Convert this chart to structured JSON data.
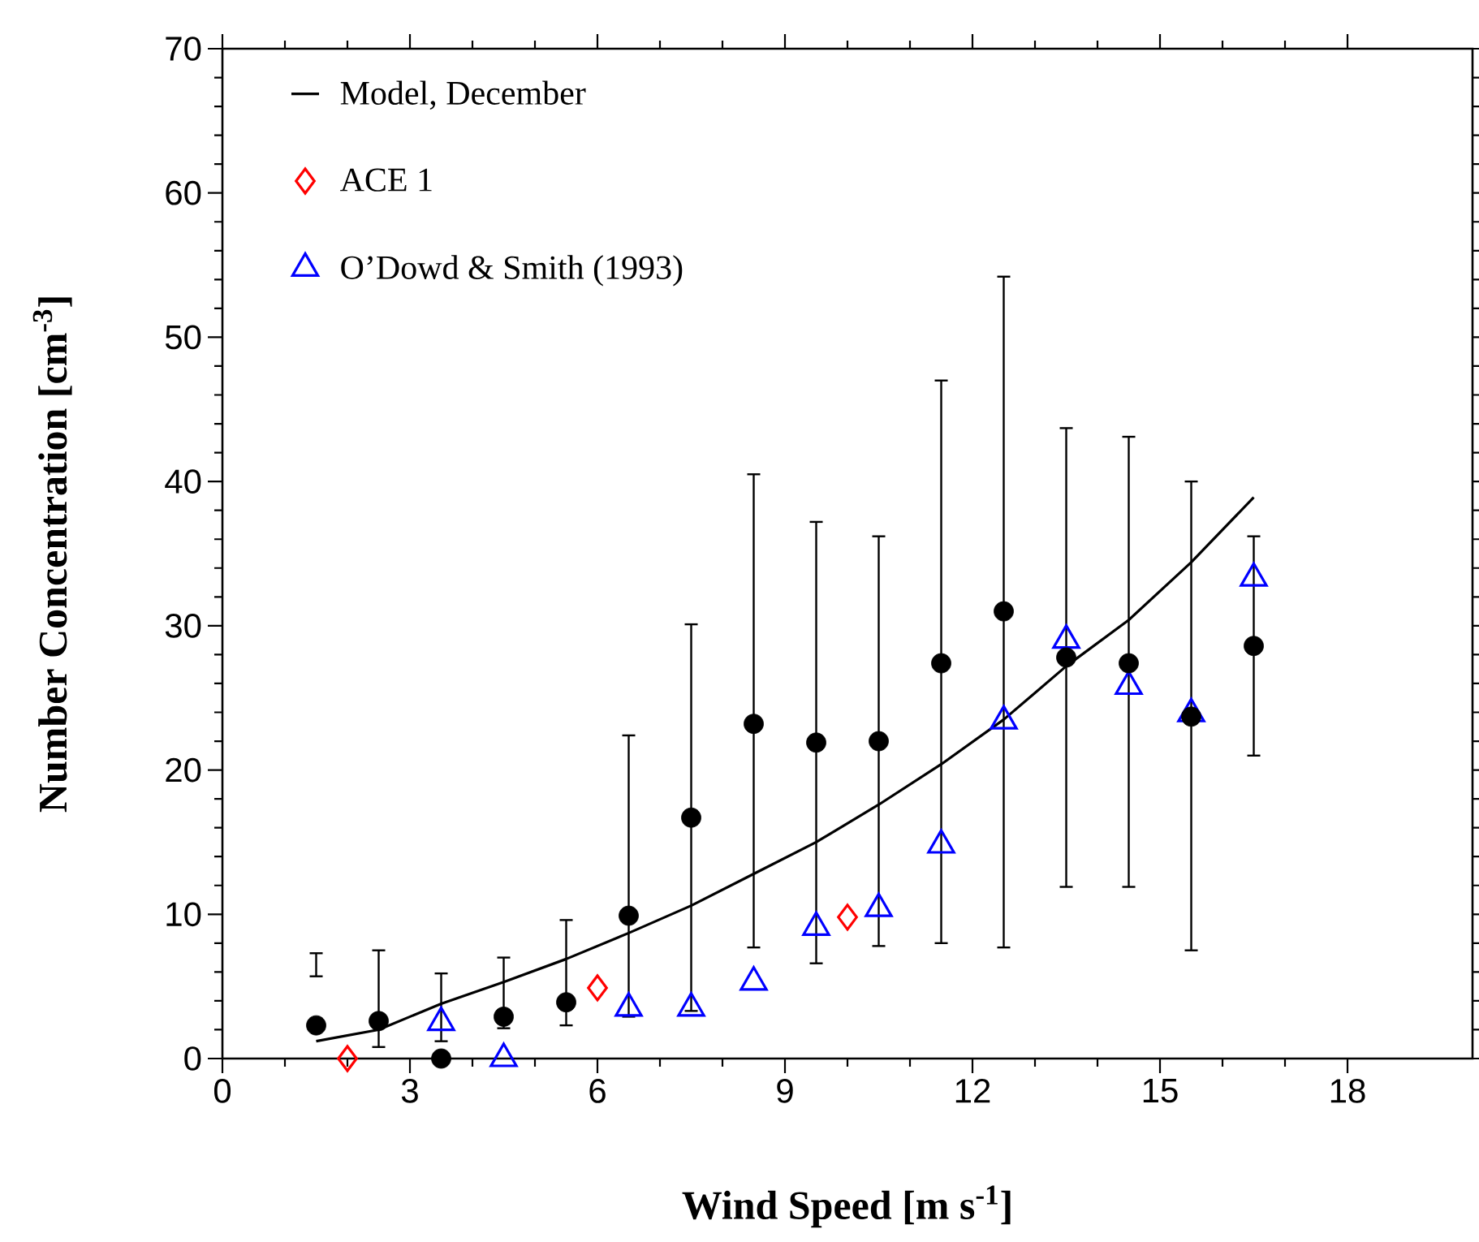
{
  "chart_data": {
    "type": "scatter",
    "xlabel": "Wind Speed [m s$^{-1}$]",
    "ylabel": "Number Concentration [cm$^{-3}$]",
    "xlim": [
      0,
      20
    ],
    "xticks": [
      0,
      3,
      6,
      9,
      12,
      15,
      18
    ],
    "ylim": [
      0,
      70
    ],
    "yticks": [
      0,
      10,
      20,
      30,
      40,
      50,
      60,
      70
    ],
    "legend": "top left",
    "series": [
      {
        "name": "Model, December",
        "type": "line",
        "marker": "none",
        "color": "#000000",
        "x": [
          1.5,
          2.5,
          3.5,
          4.5,
          5.5,
          6.5,
          7.5,
          8.5,
          9.5,
          10.5,
          11.5,
          12.5,
          13.5,
          14.5,
          15.5,
          16.5
        ],
        "values": [
          1.2,
          2.0,
          3.8,
          5.3,
          6.9,
          8.7,
          10.6,
          12.8,
          15.0,
          17.6,
          20.4,
          23.5,
          27.2,
          30.4,
          34.4,
          38.9
        ]
      },
      {
        "name": "ACE 1",
        "type": "scatter",
        "marker": "diamond",
        "color": "#ff0000",
        "x": [
          2,
          6,
          10
        ],
        "values": [
          0,
          4.9,
          9.8
        ]
      },
      {
        "name": "O’Dowd & Smith (1993)",
        "type": "scatter",
        "marker": "triangle",
        "color": "#0000ff",
        "x": [
          3.5,
          4.5,
          6.5,
          7.5,
          8.5,
          9.5,
          10.5,
          11.5,
          12.5,
          13.5,
          14.5,
          15.5,
          16.5
        ],
        "values": [
          2.5,
          0,
          3.5,
          3.5,
          5.3,
          9.1,
          10.4,
          14.8,
          23.4,
          29.0,
          25.8,
          23.9,
          33.3
        ]
      },
      {
        "marker": "circle",
        "color": "#000000",
        "x": [
          1.5,
          2.5,
          3.5,
          4.5,
          5.5,
          6.5,
          7.5,
          8.5,
          9.5,
          10.5,
          11.5,
          12.5,
          13.5,
          14.5,
          15.5,
          16.5
        ],
        "values": [
          2.3,
          2.6,
          0,
          2.9,
          3.9,
          9.9,
          16.7,
          23.2,
          21.9,
          22.0,
          27.4,
          31.0,
          27.8,
          27.4,
          23.7,
          28.6
        ],
        "errors": [
          [
            5.7,
            7.3
          ],
          [
            0.8,
            7.5
          ],
          [
            1.2,
            5.9
          ],
          [
            2.1,
            7.0
          ],
          [
            2.3,
            9.6
          ],
          [
            2.9,
            22.4
          ],
          [
            3.3,
            30.1
          ],
          [
            7.7,
            40.5
          ],
          [
            6.6,
            37.2
          ],
          [
            7.8,
            36.2
          ],
          [
            8.0,
            47.0
          ],
          [
            7.7,
            54.2
          ],
          [
            11.9,
            43.7
          ],
          [
            11.9,
            43.1
          ],
          [
            7.5,
            40.0
          ],
          [
            21.0,
            36.2
          ]
        ]
      }
    ]
  }
}
